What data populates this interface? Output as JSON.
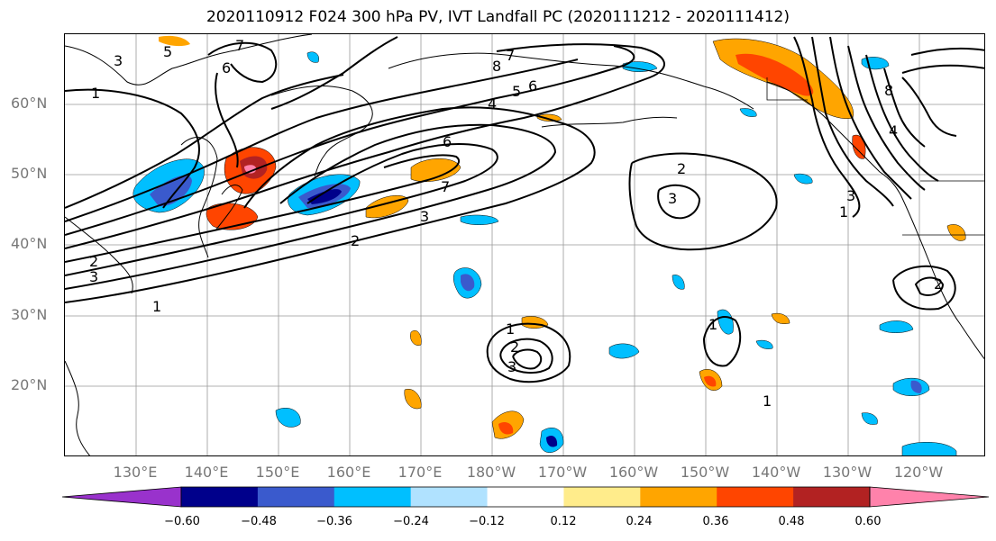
{
  "title": "2020110912 F024 300 hPa PV, IVT Landfall PC (2020111212 - 2020111412)",
  "lat_labels": [
    "60°N",
    "50°N",
    "40°N",
    "30°N",
    "20°N"
  ],
  "lon_labels": [
    "130°E",
    "140°E",
    "150°E",
    "160°E",
    "170°E",
    "180°W",
    "170°W",
    "160°W",
    "150°W",
    "140°W",
    "130°W",
    "120°W"
  ],
  "colorbar": {
    "ticks": [
      "−0.60",
      "−0.48",
      "−0.36",
      "−0.24",
      "−0.12",
      "0.12",
      "0.24",
      "0.36",
      "0.48",
      "0.60"
    ],
    "colors": [
      "#9932cc",
      "#00008b",
      "#3a5acd",
      "#00bfff",
      "#b0e2ff",
      "#ffffff",
      "#ffec8b",
      "#ffa500",
      "#ff4500",
      "#b22222",
      "#ff82ab"
    ]
  },
  "contour_labels": [
    "1",
    "2",
    "3",
    "4",
    "5",
    "6",
    "7",
    "8",
    "6",
    "7",
    "3",
    "2",
    "1",
    "3",
    "2",
    "1",
    "1",
    "2",
    "3",
    "1",
    "3",
    "4",
    "5",
    "6",
    "7",
    "8",
    "1",
    "2",
    "3"
  ],
  "colors": {
    "contour": "#000000",
    "grid": "#999999",
    "coast": "#000000"
  }
}
